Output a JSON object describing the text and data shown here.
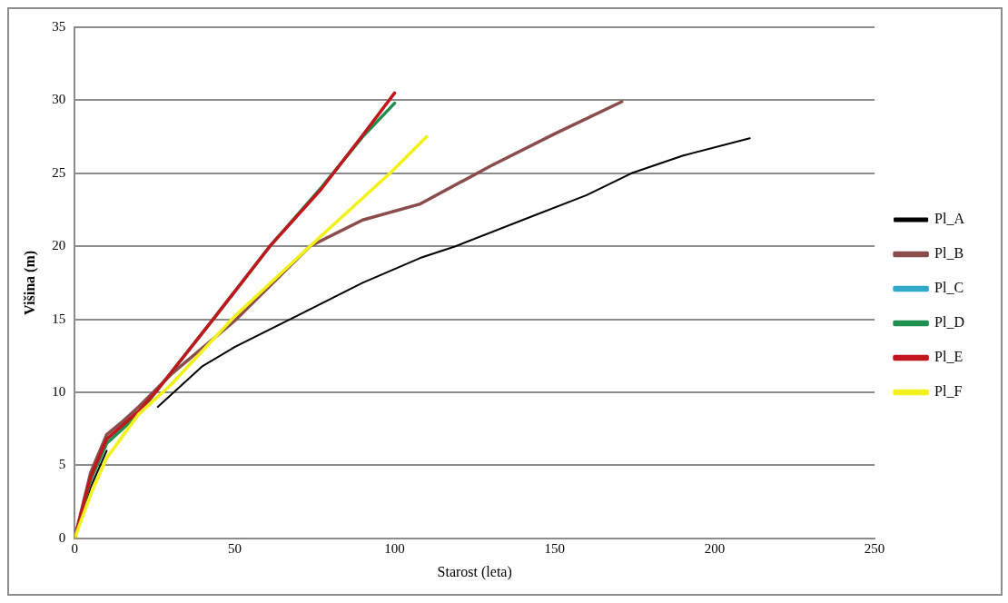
{
  "chart_data": {
    "type": "line",
    "xlabel": "Starost (leta)",
    "ylabel": "Višina (m)",
    "xlim": [
      0,
      250
    ],
    "xticks": [
      0,
      50,
      100,
      150,
      200,
      250
    ],
    "ylim": [
      0,
      35
    ],
    "yticks": [
      0,
      5,
      10,
      15,
      20,
      25,
      30,
      35
    ],
    "grid": "y",
    "legend": "right",
    "marker": "none",
    "line_style": "solid",
    "series": [
      {
        "name": "Pl_A",
        "color": "#000000",
        "x": [
          0,
          5,
          10,
          20,
          26,
          40,
          50,
          71,
          90,
          108,
          119,
          140,
          160,
          174,
          190,
          211
        ],
        "values": [
          0,
          3.5,
          6,
          null,
          9,
          11.8,
          13.1,
          15.4,
          17.5,
          19.2,
          20,
          21.8,
          23.5,
          25,
          26.2,
          27.4
        ]
      },
      {
        "name": "Pl_B",
        "color": "#8b4c4c",
        "x": [
          0,
          5,
          10,
          15,
          20,
          30,
          50,
          73.5,
          90,
          108,
          130,
          150,
          171
        ],
        "values": [
          0,
          4.5,
          7.1,
          8,
          9,
          11.2,
          14.9,
          20,
          21.8,
          22.9,
          25.5,
          27.7,
          29.9
        ]
      },
      {
        "name": "Pl_C",
        "color": "#31a9c9",
        "values": [
          null
        ]
      },
      {
        "name": "Pl_D",
        "color": "#1f8f4f",
        "x": [
          0,
          5,
          10,
          20,
          26,
          44,
          61,
          77,
          90,
          100
        ],
        "values": [
          0,
          4,
          6.5,
          8.5,
          10.2,
          15.2,
          20,
          24,
          27.5,
          29.8
        ]
      },
      {
        "name": "Pl_E",
        "color": "#c0161c",
        "x": [
          0,
          5,
          10,
          20,
          26,
          44,
          61,
          77,
          90,
          100
        ],
        "values": [
          0,
          4.2,
          6.8,
          8.7,
          10.2,
          15.2,
          20,
          23.9,
          27.6,
          30.5
        ]
      },
      {
        "name": "Pl_F",
        "color": "#f2f21a",
        "x": [
          0,
          5,
          10,
          20,
          30,
          50,
          73.5,
          99,
          110
        ],
        "values": [
          0,
          3,
          5.5,
          8.5,
          10.5,
          15.2,
          20,
          25.1,
          27.5
        ]
      }
    ]
  }
}
